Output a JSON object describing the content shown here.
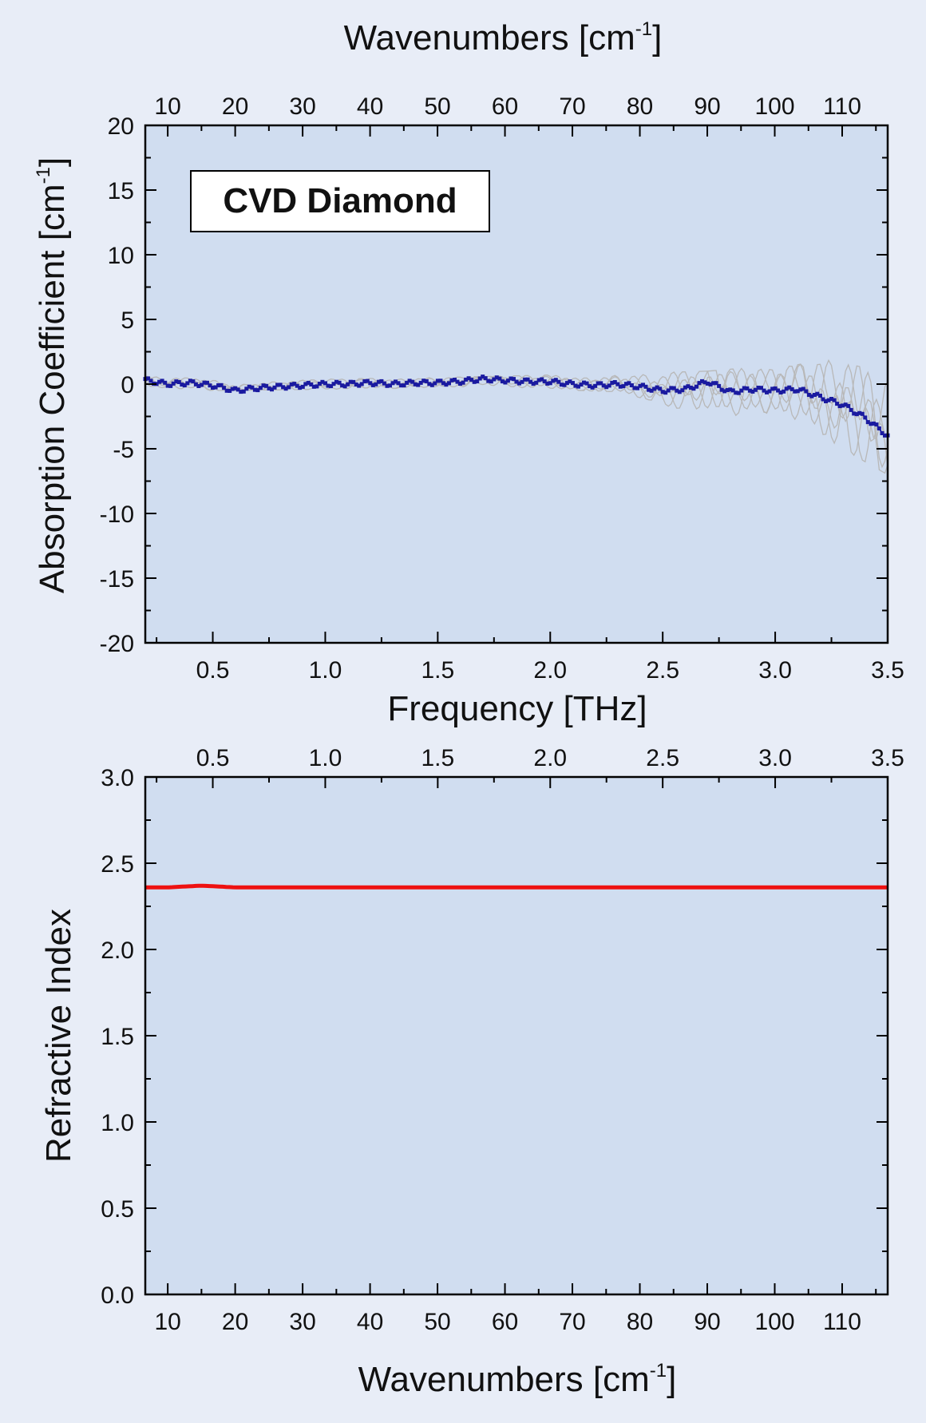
{
  "colors": {
    "page_background": "#e8edf7",
    "plot_background": "#d0ddf0",
    "absorption_mean": "#1a1aa0",
    "absorption_runs": "#b8b8b8",
    "refractive_index": "#ee1111"
  },
  "chart_data": [
    {
      "type": "line",
      "title": "",
      "annotation": "CVD Diamond",
      "xlabel": "Frequency  [THz]",
      "ylabel_text": "Absorption Coefficient [cm",
      "ylabel_sup": "-1",
      "ylabel_close": "]",
      "top_axis_label_text": "Wavenumbers  [cm",
      "top_axis_label_sup": "-1",
      "top_axis_label_close": "]",
      "xlim": [
        0.2,
        3.5
      ],
      "ylim": [
        -20,
        20
      ],
      "x_ticks": [
        0.5,
        1.0,
        1.5,
        2.0,
        2.5,
        3.0,
        3.5
      ],
      "x_tick_labels": [
        "0.5",
        "1.0",
        "1.5",
        "2.0",
        "2.5",
        "3.0",
        "3.5"
      ],
      "y_ticks": [
        -20,
        -15,
        -10,
        -5,
        0,
        5,
        10,
        15,
        20
      ],
      "y_tick_labels": [
        "-20",
        "-15",
        "-10",
        "-5",
        "0",
        "5",
        "10",
        "15",
        "20"
      ],
      "top_ticks_cm": [
        10,
        20,
        30,
        40,
        50,
        60,
        70,
        80,
        90,
        100,
        110
      ],
      "top_tick_labels": [
        "10",
        "20",
        "30",
        "40",
        "50",
        "60",
        "70",
        "80",
        "90",
        "100",
        "110"
      ],
      "series": [
        {
          "role": "mean",
          "x": [
            0.2,
            0.3,
            0.4,
            0.5,
            0.6,
            0.7,
            0.8,
            0.9,
            1.0,
            1.1,
            1.2,
            1.3,
            1.4,
            1.5,
            1.6,
            1.7,
            1.8,
            1.9,
            2.0,
            2.1,
            2.2,
            2.3,
            2.4,
            2.5,
            2.6,
            2.7,
            2.8,
            2.9,
            3.0,
            3.1,
            3.2,
            3.3,
            3.4,
            3.5
          ],
          "y": [
            0.3,
            0.0,
            0.1,
            -0.1,
            -0.5,
            -0.3,
            -0.2,
            -0.1,
            0.0,
            0.0,
            0.1,
            0.0,
            0.1,
            0.1,
            0.2,
            0.4,
            0.3,
            0.2,
            0.2,
            0.0,
            -0.1,
            0.0,
            -0.2,
            -0.5,
            -0.4,
            0.2,
            -0.6,
            -0.4,
            -0.5,
            -0.4,
            -1.0,
            -1.6,
            -2.6,
            -4.0
          ]
        },
        {
          "role": "individual-runs-upper",
          "x": [
            0.2,
            0.5,
            1.0,
            1.5,
            2.0,
            2.3,
            2.5,
            2.7,
            2.9,
            3.0,
            3.1,
            3.2,
            3.3,
            3.4,
            3.5
          ],
          "y": [
            0.6,
            0.4,
            0.4,
            0.5,
            0.7,
            0.8,
            0.9,
            1.0,
            1.3,
            1.2,
            1.5,
            1.8,
            1.9,
            2.0,
            1.5
          ]
        },
        {
          "role": "individual-runs-lower",
          "x": [
            0.2,
            0.5,
            1.0,
            1.5,
            2.0,
            2.3,
            2.5,
            2.7,
            2.9,
            3.0,
            3.1,
            3.2,
            3.3,
            3.4,
            3.5
          ],
          "y": [
            -0.2,
            -0.5,
            -0.4,
            -0.3,
            -0.4,
            -0.6,
            -1.5,
            -3.2,
            -2.5,
            -2.8,
            -3.5,
            -4.0,
            -5.0,
            -6.0,
            -7.0
          ]
        }
      ]
    },
    {
      "type": "line",
      "title": "",
      "xlabel_text": "Wavenumbers [cm",
      "xlabel_sup": "-1",
      "xlabel_close": "]",
      "ylabel": "Refractive Index",
      "xlim": [
        6.67,
        116.75
      ],
      "ylim": [
        0.0,
        3.0
      ],
      "x_ticks": [
        10,
        20,
        30,
        40,
        50,
        60,
        70,
        80,
        90,
        100,
        110
      ],
      "x_tick_labels": [
        "10",
        "20",
        "30",
        "40",
        "50",
        "60",
        "70",
        "80",
        "90",
        "100",
        "110"
      ],
      "y_ticks": [
        0.0,
        0.5,
        1.0,
        1.5,
        2.0,
        2.5,
        3.0
      ],
      "y_tick_labels": [
        "0.0",
        "0.5",
        "1.0",
        "1.5",
        "2.0",
        "2.5",
        "3.0"
      ],
      "top_ticks_thz": [
        0.5,
        1.0,
        1.5,
        2.0,
        2.5,
        3.0,
        3.5
      ],
      "top_tick_labels": [
        "0.5",
        "1.0",
        "1.5",
        "2.0",
        "2.5",
        "3.0",
        "3.5"
      ],
      "series": [
        {
          "role": "refractive-index",
          "x": [
            6.67,
            10,
            15,
            20,
            30,
            40,
            50,
            60,
            70,
            80,
            90,
            100,
            110,
            116.75
          ],
          "y": [
            2.36,
            2.36,
            2.37,
            2.36,
            2.36,
            2.36,
            2.36,
            2.36,
            2.36,
            2.36,
            2.36,
            2.36,
            2.36,
            2.36
          ]
        }
      ]
    }
  ]
}
